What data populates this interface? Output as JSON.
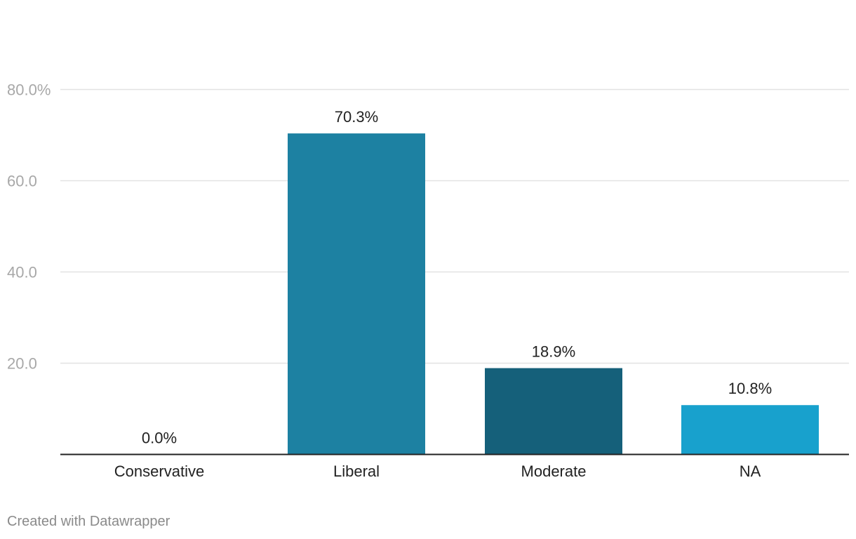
{
  "chart_data": {
    "type": "bar",
    "categories": [
      "Conservative",
      "Liberal",
      "Moderate",
      "NA"
    ],
    "values": [
      0.0,
      70.3,
      18.9,
      10.8
    ],
    "value_labels": [
      "0.0%",
      "70.3%",
      "18.9%",
      "10.8%"
    ],
    "bar_colors": [
      "#1d81a2",
      "#1d81a2",
      "#15607a",
      "#18a1cd"
    ],
    "y_ticks": [
      20,
      40,
      60,
      80
    ],
    "y_tick_labels": [
      "20.0",
      "40.0",
      "60.0",
      "80.0%"
    ],
    "ylim": [
      0,
      80
    ],
    "grid": true,
    "title": "",
    "xlabel": "",
    "ylabel": ""
  },
  "colors": {
    "gridline": "#e2e2e2",
    "axis": "#222222",
    "tick_label": "#a8a8a8",
    "category_label": "#222222",
    "value_label": "#222222"
  },
  "footer": {
    "credit": "Created with Datawrapper"
  }
}
